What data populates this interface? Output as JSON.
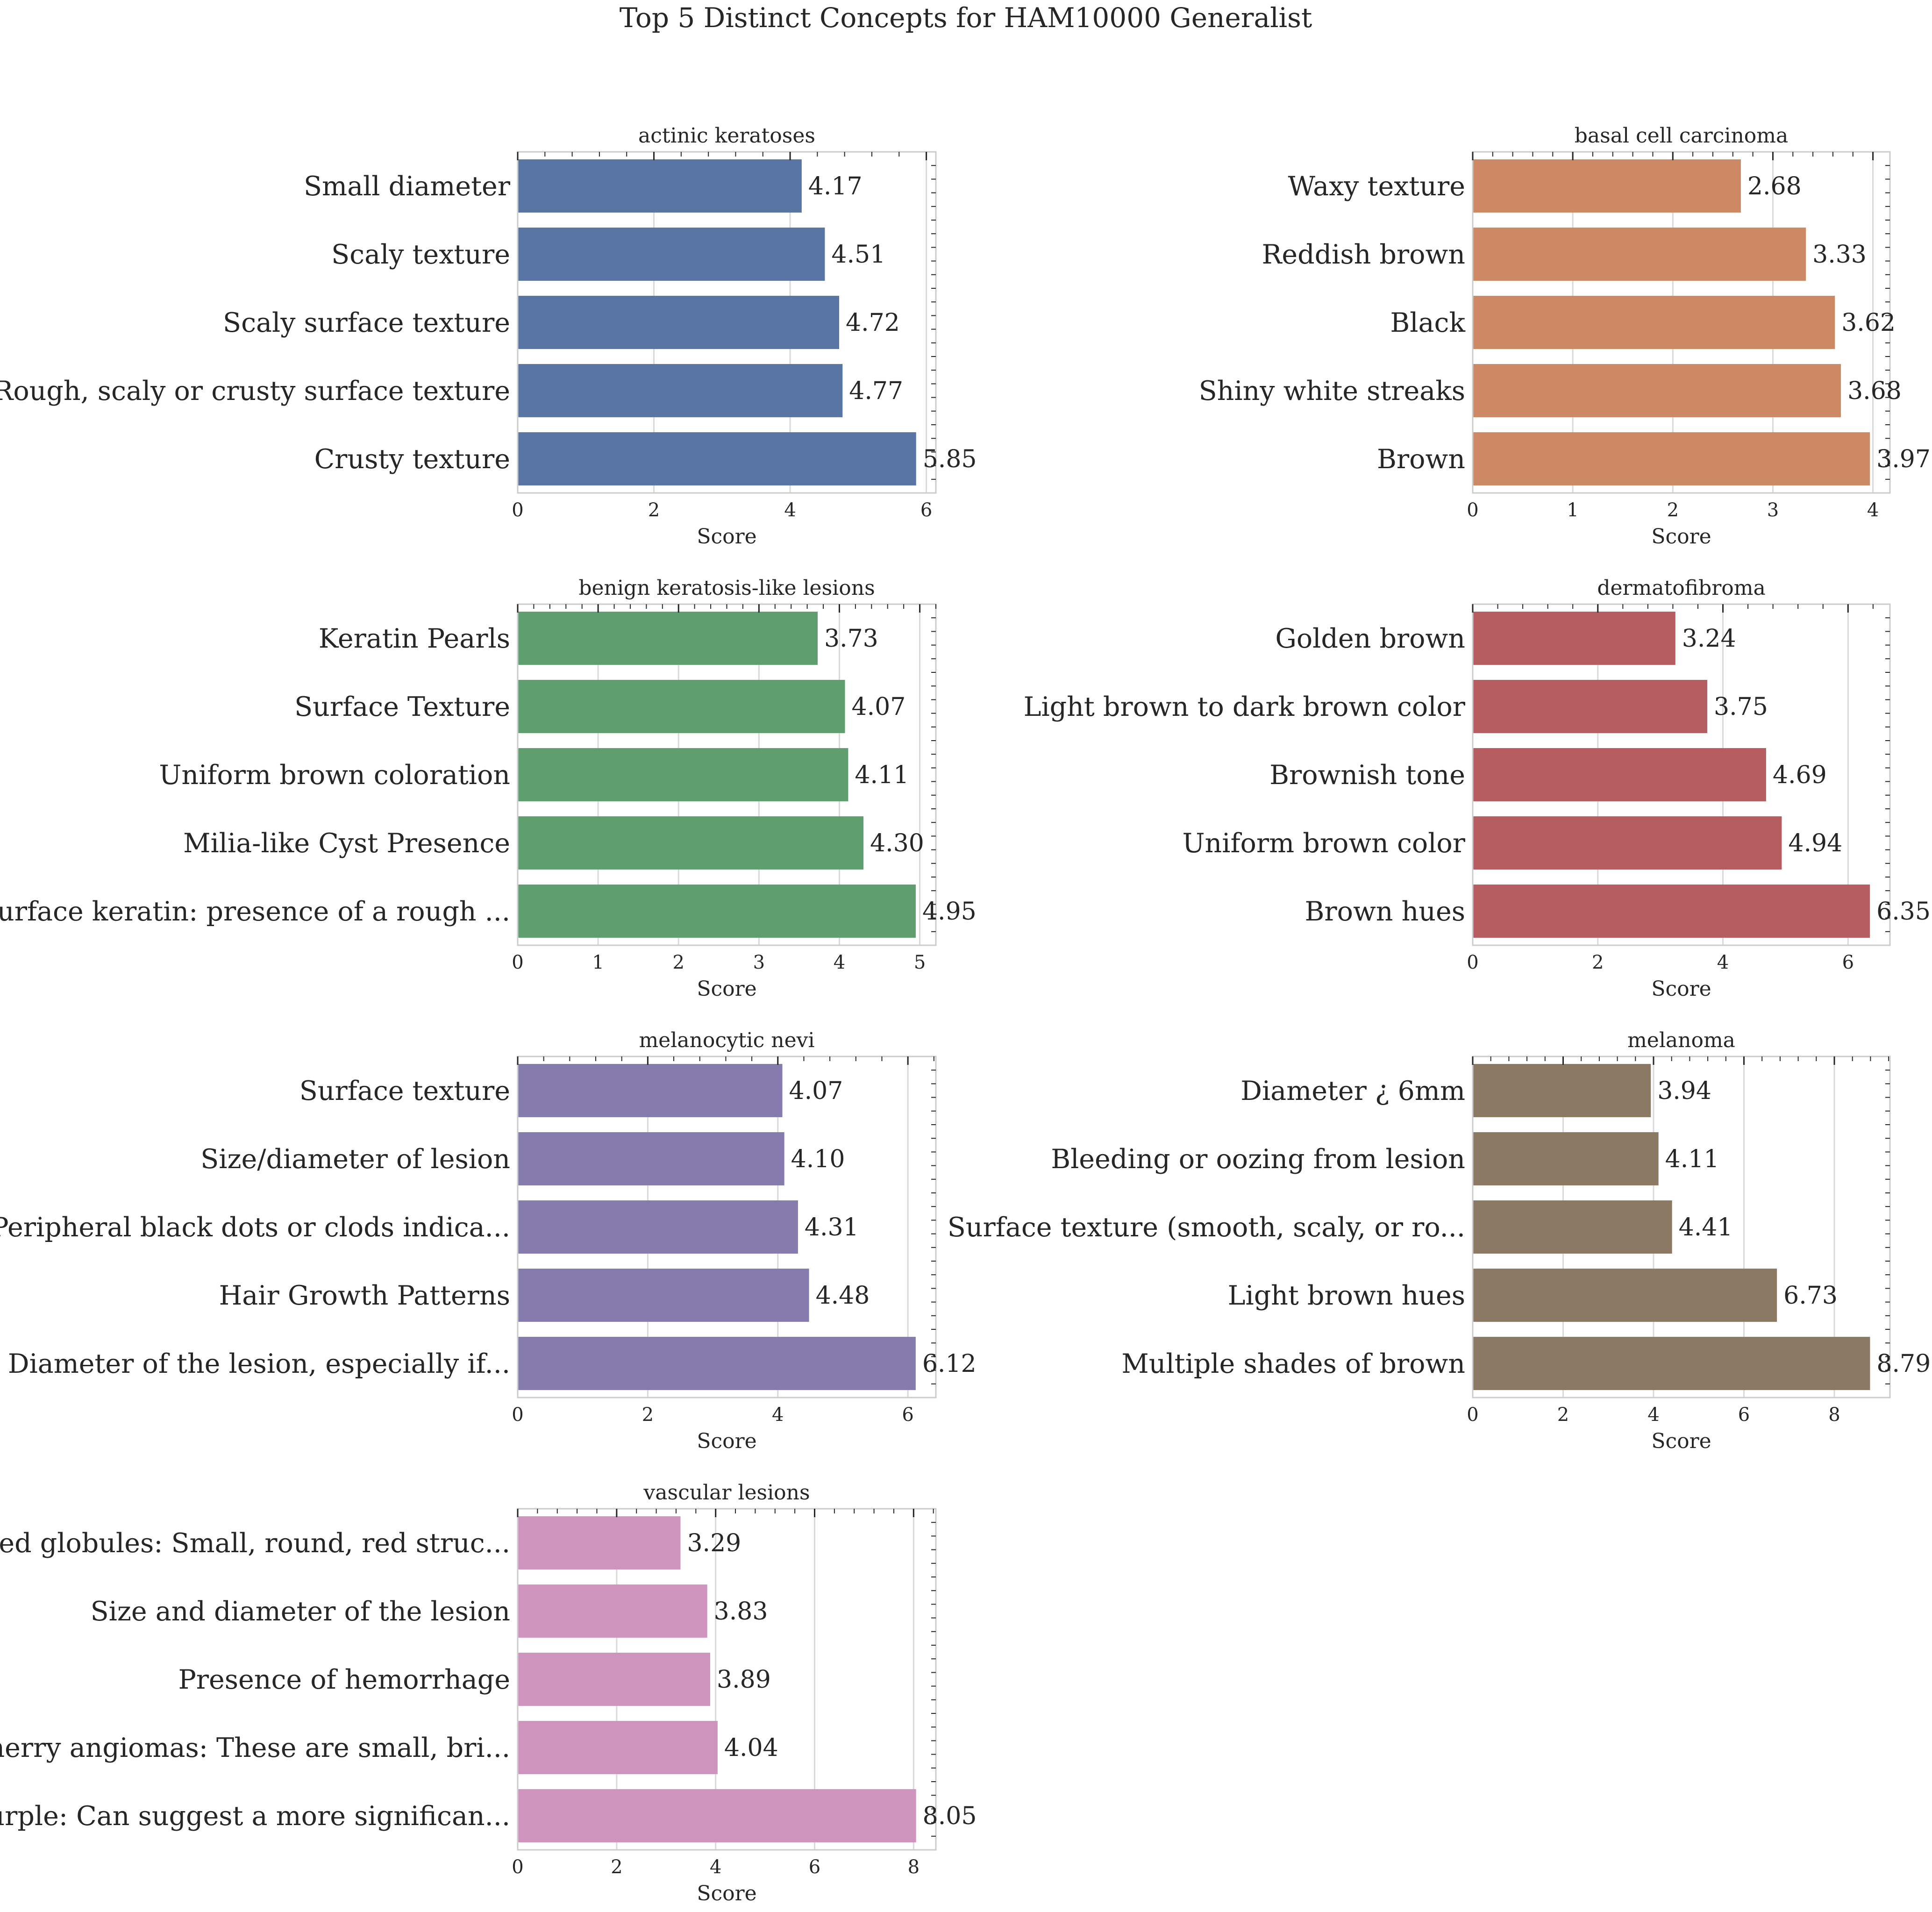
{
  "figure": {
    "title": "Top 5 Distinct Concepts for HAM10000 Generalist"
  },
  "chart_data": [
    {
      "type": "bar",
      "orientation": "horizontal",
      "title": "actinic keratoses",
      "xlabel": "Score",
      "ylabel": "",
      "color": "#5975a4",
      "categories": [
        "Small diameter",
        "Scaly texture",
        "Scaly surface texture",
        "Rough, scaly or crusty surface texture",
        "Crusty texture"
      ],
      "values": [
        4.17,
        4.51,
        4.72,
        4.77,
        5.85
      ],
      "value_labels": [
        "4.17",
        "4.51",
        "4.72",
        "4.77",
        "5.85"
      ],
      "xlim": [
        0,
        6.14
      ],
      "xticks": [
        0,
        2,
        4,
        6
      ],
      "xtick_labels": [
        "0",
        "2",
        "4",
        "6"
      ],
      "grid": true
    },
    {
      "type": "bar",
      "orientation": "horizontal",
      "title": "basal cell carcinoma",
      "xlabel": "Score",
      "ylabel": "",
      "color": "#cc8963",
      "categories": [
        "Waxy texture",
        "Reddish brown",
        "Black",
        "Shiny white streaks",
        "Brown"
      ],
      "values": [
        2.68,
        3.33,
        3.62,
        3.68,
        3.97
      ],
      "value_labels": [
        "2.68",
        "3.33",
        "3.62",
        "3.68",
        "3.97"
      ],
      "xlim": [
        0,
        4.17
      ],
      "xticks": [
        0,
        1,
        2,
        3,
        4
      ],
      "xtick_labels": [
        "0",
        "1",
        "2",
        "3",
        "4"
      ],
      "grid": true
    },
    {
      "type": "bar",
      "orientation": "horizontal",
      "title": "benign keratosis-like lesions",
      "xlabel": "Score",
      "ylabel": "",
      "color": "#5f9e6e",
      "categories": [
        "Keratin Pearls",
        "Surface Texture",
        "Uniform brown coloration",
        "Milia-like Cyst Presence",
        "Surface keratin: presence of a rough ..."
      ],
      "values": [
        3.73,
        4.07,
        4.11,
        4.3,
        4.95
      ],
      "value_labels": [
        "3.73",
        "4.07",
        "4.11",
        "4.30",
        "4.95"
      ],
      "xlim": [
        0,
        5.2
      ],
      "xticks": [
        0,
        1,
        2,
        3,
        4,
        5
      ],
      "xtick_labels": [
        "0",
        "1",
        "2",
        "3",
        "4",
        "5"
      ],
      "grid": true
    },
    {
      "type": "bar",
      "orientation": "horizontal",
      "title": "dermatofibroma",
      "xlabel": "Score",
      "ylabel": "",
      "color": "#b55d60",
      "categories": [
        "Golden brown",
        "Light brown to dark brown color",
        "Brownish tone",
        "Uniform brown color",
        "Brown hues"
      ],
      "values": [
        3.24,
        3.75,
        4.69,
        4.94,
        6.35
      ],
      "value_labels": [
        "3.24",
        "3.75",
        "4.69",
        "4.94",
        "6.35"
      ],
      "xlim": [
        0,
        6.67
      ],
      "xticks": [
        0,
        2,
        4,
        6
      ],
      "xtick_labels": [
        "0",
        "2",
        "4",
        "6"
      ],
      "grid": true
    },
    {
      "type": "bar",
      "orientation": "horizontal",
      "title": "melanocytic nevi",
      "xlabel": "Score",
      "ylabel": "",
      "color": "#867bad",
      "categories": [
        "Surface texture",
        "Size/diameter of lesion",
        "Peripheral black dots or clods indica...",
        "Hair Growth Patterns",
        "Diameter of the lesion, especially if..."
      ],
      "values": [
        4.07,
        4.1,
        4.31,
        4.48,
        6.12
      ],
      "value_labels": [
        "4.07",
        "4.10",
        "4.31",
        "4.48",
        "6.12"
      ],
      "xlim": [
        0,
        6.43
      ],
      "xticks": [
        0,
        2,
        4,
        6
      ],
      "xtick_labels": [
        "0",
        "2",
        "4",
        "6"
      ],
      "grid": true
    },
    {
      "type": "bar",
      "orientation": "horizontal",
      "title": "melanoma",
      "xlabel": "Score",
      "ylabel": "",
      "color": "#8c7964",
      "categories": [
        "Diameter ¿ 6mm",
        "Bleeding or oozing from lesion",
        "Surface texture (smooth, scaly, or ro...",
        "Light brown hues",
        "Multiple shades of brown"
      ],
      "values": [
        3.94,
        4.11,
        4.41,
        6.73,
        8.79
      ],
      "value_labels": [
        "3.94",
        "4.11",
        "4.41",
        "6.73",
        "8.79"
      ],
      "xlim": [
        0,
        9.23
      ],
      "xticks": [
        0,
        2,
        4,
        6,
        8
      ],
      "xtick_labels": [
        "0",
        "2",
        "4",
        "6",
        "8"
      ],
      "grid": true
    },
    {
      "type": "bar",
      "orientation": "horizontal",
      "title": "vascular lesions",
      "xlabel": "Score",
      "ylabel": "",
      "color": "#cf94bd",
      "categories": [
        "Red globules: Small, round, red struc...",
        "Size and diameter of the lesion",
        "Presence of hemorrhage",
        "Cherry angiomas: These are small, bri...",
        "Purple: Can suggest a more significan..."
      ],
      "values": [
        3.29,
        3.83,
        3.89,
        4.04,
        8.05
      ],
      "value_labels": [
        "3.29",
        "3.83",
        "3.89",
        "4.04",
        "8.05"
      ],
      "xlim": [
        0,
        8.45
      ],
      "xticks": [
        0,
        2,
        4,
        6,
        8
      ],
      "xtick_labels": [
        "0",
        "2",
        "4",
        "6",
        "8"
      ],
      "grid": true
    }
  ]
}
